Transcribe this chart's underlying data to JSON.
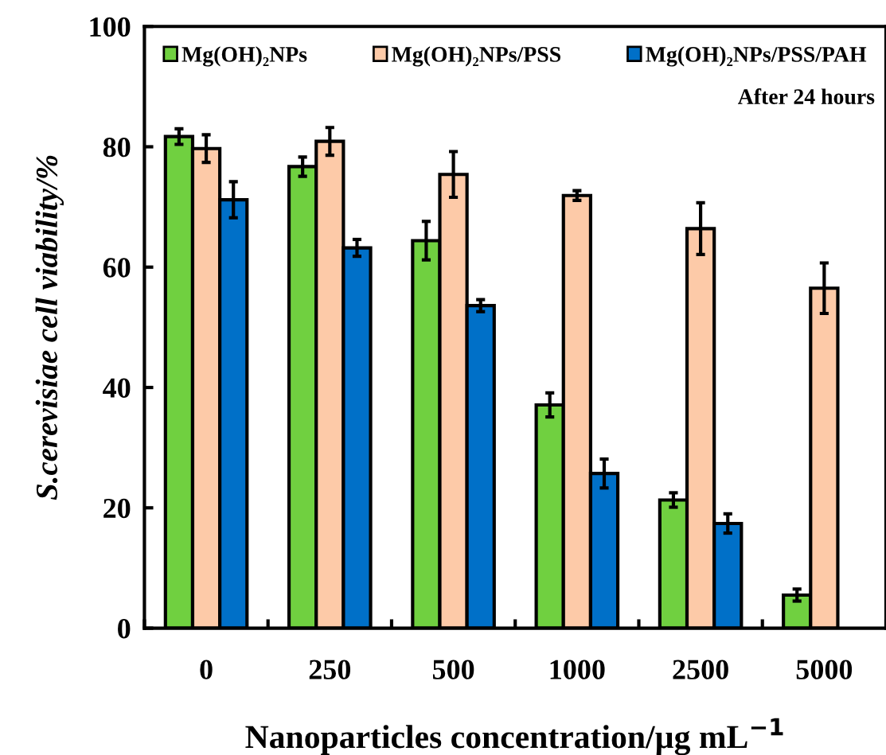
{
  "chart_data": {
    "type": "bar",
    "xlabel": "Nanoparticles concentration/µg mL$^{−1}$",
    "ylabel": "S.cerevisiae cell viability/%",
    "categories": [
      "0",
      "250",
      "500",
      "1000",
      "2500",
      "5000"
    ],
    "series": [
      {
        "name": "Mg(OH)₂NPs",
        "color": "#70d040",
        "values": [
          81.7,
          76.7,
          64.4,
          37.1,
          21.3,
          5.5
        ],
        "errors": [
          1.3,
          1.6,
          3.2,
          2.0,
          1.2,
          1.0
        ]
      },
      {
        "name": "Mg(OH)₂NPs/PSS",
        "color": "#fdcaa8",
        "values": [
          79.7,
          80.9,
          75.4,
          71.9,
          66.4,
          56.5
        ],
        "errors": [
          2.3,
          2.3,
          3.8,
          0.8,
          4.3,
          4.2
        ]
      },
      {
        "name": "Mg(OH)₂NPs/PSS/PAH",
        "color": "#0070c8",
        "values": [
          71.2,
          63.2,
          53.6,
          25.7,
          17.4,
          null
        ],
        "errors": [
          3.0,
          1.4,
          1.0,
          2.4,
          1.6,
          null
        ]
      }
    ],
    "ylim": [
      0,
      100
    ],
    "yticks": [
      0,
      20,
      40,
      60,
      80,
      100
    ],
    "grid": false,
    "legend": "top",
    "annotations": [
      "After 24 hours"
    ]
  }
}
